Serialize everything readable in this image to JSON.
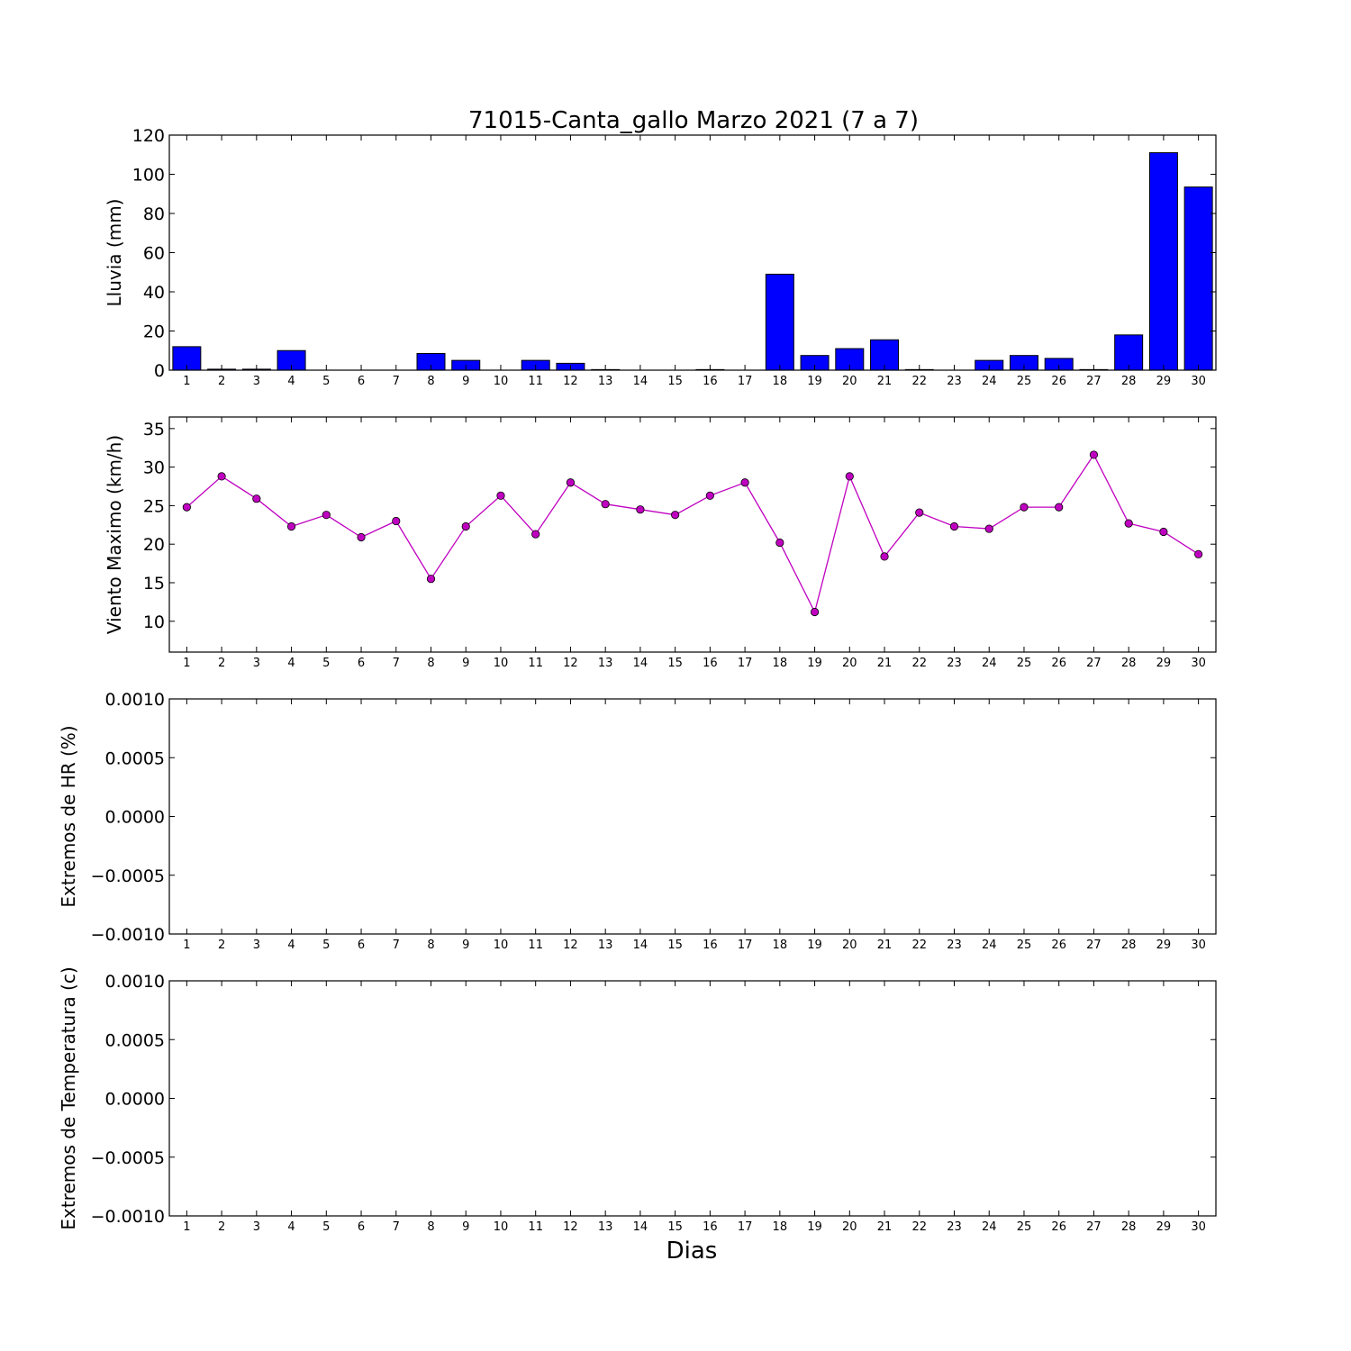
{
  "chart_data": {
    "title": "71015-Canta_gallo Marzo 2021  (7 a 7)",
    "xlabel": "Dias",
    "days": [
      1,
      2,
      3,
      4,
      5,
      6,
      7,
      8,
      9,
      10,
      11,
      12,
      13,
      14,
      15,
      16,
      17,
      18,
      19,
      20,
      21,
      22,
      23,
      24,
      25,
      26,
      27,
      28,
      29,
      30
    ],
    "panels": [
      {
        "type": "bar",
        "ylabel": "Lluvia (mm)",
        "ylim": [
          0,
          120
        ],
        "yticks": [
          0,
          20,
          40,
          60,
          80,
          100,
          120
        ],
        "ytick_labels": [
          "0",
          "20",
          "40",
          "60",
          "80",
          "100",
          "120"
        ],
        "color": "#0000ff",
        "values": [
          12,
          0.5,
          0.5,
          10,
          0,
          0,
          0,
          8.5,
          5,
          0,
          5,
          3.5,
          0.3,
          0,
          0,
          0.3,
          0,
          49,
          7.5,
          11,
          15.5,
          0.3,
          0,
          5,
          7.5,
          6,
          0.3,
          18,
          111,
          93.5
        ]
      },
      {
        "type": "line",
        "ylabel": "Viento Maximo (km/h)",
        "ylim": [
          6,
          36.5
        ],
        "yticks": [
          10,
          15,
          20,
          25,
          30,
          35
        ],
        "ytick_labels": [
          "10",
          "15",
          "20",
          "25",
          "30",
          "35"
        ],
        "color": "#c000c0",
        "values": [
          24.8,
          28.8,
          25.9,
          22.3,
          23.8,
          20.9,
          23.0,
          15.5,
          22.3,
          26.3,
          21.3,
          28.0,
          25.2,
          24.5,
          23.8,
          26.3,
          28.0,
          20.2,
          11.2,
          28.8,
          18.4,
          24.1,
          22.3,
          22.0,
          24.8,
          24.8,
          31.6,
          22.7,
          21.6,
          18.7
        ]
      },
      {
        "type": "line",
        "ylabel": "Extremos de HR (%)",
        "ylim": [
          -0.001,
          0.001
        ],
        "yticks": [
          -0.001,
          -0.0005,
          0,
          0.0005,
          0.001
        ],
        "ytick_labels": [
          "−0.0010",
          "−0.0005",
          "0.0000",
          "0.0005",
          "0.0010"
        ],
        "values": []
      },
      {
        "type": "line",
        "ylabel": "Extremos de Temperatura (c)",
        "ylim": [
          -0.001,
          0.001
        ],
        "yticks": [
          -0.001,
          -0.0005,
          0,
          0.0005,
          0.001
        ],
        "ytick_labels": [
          "−0.0010",
          "−0.0005",
          "0.0000",
          "0.0005",
          "0.0010"
        ],
        "values": []
      }
    ]
  }
}
